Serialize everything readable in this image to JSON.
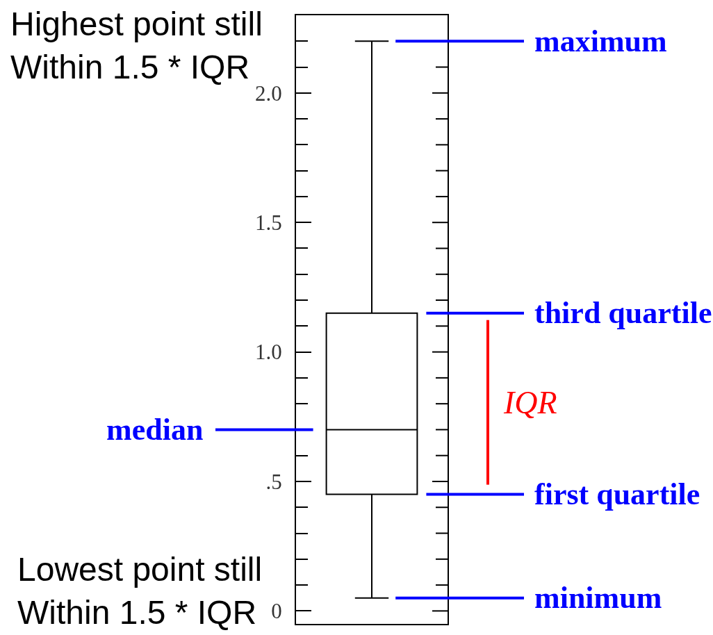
{
  "chart_data": {
    "type": "box",
    "categories": [
      null
    ],
    "color": "#000000",
    "boxes": [
      {
        "low": 0.05,
        "q1": 0.45,
        "median": 0.7,
        "q3": 1.15,
        "high": 2.2
      }
    ],
    "ylim": [
      -0.05,
      2.3
    ],
    "yticks": [
      0,
      {
        "value": 0.5,
        "label": ".5"
      },
      {
        "value": 1,
        "label": "1.0"
      },
      1.5,
      {
        "value": 2,
        "label": "2.0"
      }
    ],
    "tick_labels": "y",
    "ref_lines": [
      {
        "axis": "y",
        "value": 2.2,
        "label": "maximum",
        "color": "#0000ff"
      },
      {
        "axis": "y",
        "value": 1.15,
        "label": "third quartile",
        "color": "#0000ff"
      },
      {
        "axis": "y",
        "value": 0.45,
        "label": "first quartile",
        "color": "#0000ff"
      },
      {
        "axis": "y",
        "value": 0.05,
        "label": "minimum",
        "color": "#0000ff"
      }
    ],
    "annotations": [
      "Highest point still\nWithin 1.5 * IQR",
      "median",
      "IQR",
      "Lowest point still\nWithin 1.5 * IQR"
    ]
  }
}
